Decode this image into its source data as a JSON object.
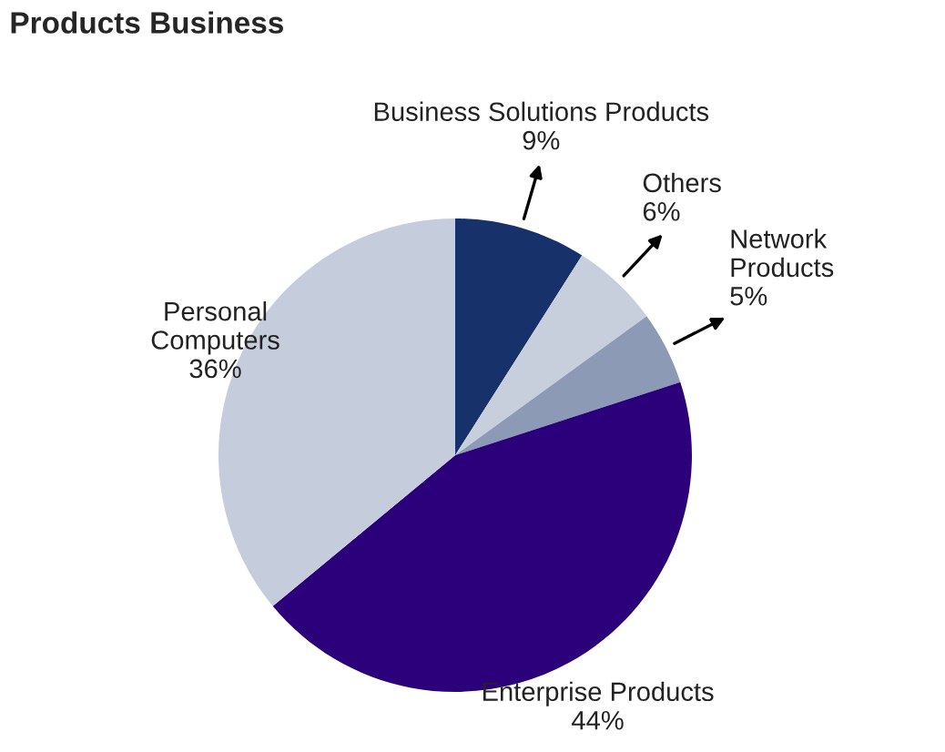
{
  "chart_data": {
    "type": "pie",
    "title": "Products Business",
    "categories": [
      "Business Solutions Products",
      "Others",
      "Network\nProducts",
      "Enterprise Products",
      "Personal\nComputers"
    ],
    "values": [
      9,
      6,
      5,
      44,
      36
    ],
    "colors": [
      "#17326b",
      "#c8cfdc",
      "#8c9ab5",
      "#2b007a",
      "#c5ccdb"
    ],
    "value_labels": [
      "9%",
      "6%",
      "5%",
      "44%",
      "36%"
    ],
    "legend": false
  }
}
